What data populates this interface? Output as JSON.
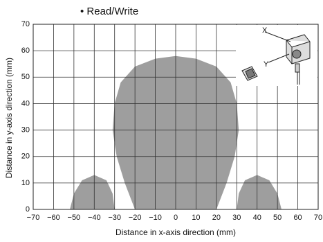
{
  "chart_data": {
    "type": "area",
    "title": "• Read/Write",
    "x_label": "Distance in x-axis direction (mm)",
    "y_label": "Distance in y-axis direction (mm)",
    "annotations": [
      "X",
      "Y"
    ],
    "series": [
      {
        "color": "#9e9e9e",
        "x": [
          -20,
          -25,
          -29,
          -31,
          -30,
          -27,
          -20,
          -10,
          0,
          10,
          20,
          27,
          30,
          31,
          29,
          25,
          20
        ],
        "values": [
          0,
          10,
          20,
          30,
          40,
          48,
          54,
          57,
          58,
          57,
          54,
          48,
          40,
          30,
          20,
          10,
          0
        ]
      },
      {
        "color": "#9e9e9e",
        "x": [
          -52,
          -50,
          -46,
          -40,
          -34,
          -31,
          -30
        ],
        "values": [
          0,
          6,
          11,
          13,
          11,
          6,
          0
        ]
      },
      {
        "color": "#9e9e9e",
        "x": [
          30,
          31,
          34,
          40,
          46,
          50,
          52
        ],
        "values": [
          0,
          6,
          11,
          13,
          11,
          6,
          0
        ]
      }
    ],
    "xlim": [
      -70,
      70
    ],
    "ylim": [
      0,
      70
    ],
    "xticks": [
      {
        "value": -70,
        "label": "−70"
      },
      {
        "value": -60,
        "label": "−60"
      },
      {
        "value": -50,
        "label": "−50"
      },
      {
        "value": -40,
        "label": "−40"
      },
      {
        "value": -30,
        "label": "−30"
      },
      {
        "value": -20,
        "label": "−20"
      },
      {
        "value": -10,
        "label": "−10"
      },
      0,
      10,
      20,
      30,
      40,
      50,
      60,
      70
    ],
    "yticks": [
      0,
      10,
      20,
      30,
      40,
      50,
      60,
      70
    ],
    "grid": true
  }
}
